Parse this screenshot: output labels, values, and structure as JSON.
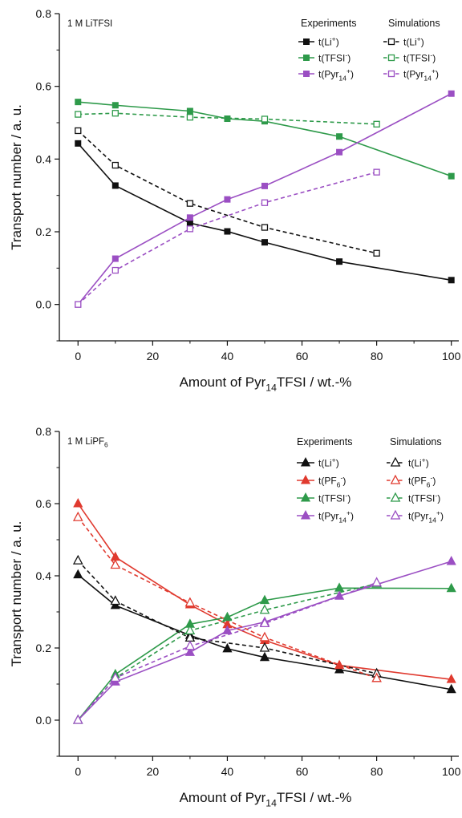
{
  "chart_data": [
    {
      "type": "line",
      "panel_label": "1 M LiTFSI",
      "xlabel": "Amount of Pyr14TFSI / wt.-%",
      "ylabel": "Transport number / a. u.",
      "xlim": [
        -5,
        102
      ],
      "ylim": [
        -0.1,
        0.8
      ],
      "xticks": [
        0,
        20,
        40,
        60,
        80,
        100
      ],
      "yticks": [
        0.0,
        0.2,
        0.4,
        0.6,
        0.8
      ],
      "xtick_labels": [
        "0",
        "20",
        "40",
        "60",
        "80",
        "100"
      ],
      "ytick_labels": [
        "0.0",
        "0.2",
        "0.4",
        "0.6",
        "0.8"
      ],
      "legend_headers": [
        "Experiments",
        "Simulations"
      ],
      "legend_placement": "top-right",
      "series": [
        {
          "name": "t(Li+)",
          "group": "Experiments",
          "color": "#111111",
          "marker": "square-filled",
          "dashed": false,
          "x": [
            0,
            10,
            30,
            40,
            50,
            70,
            100
          ],
          "y": [
            0.443,
            0.327,
            0.224,
            0.201,
            0.171,
            0.118,
            0.067
          ]
        },
        {
          "name": "t(TFSI-)",
          "group": "Experiments",
          "color": "#2e9a4a",
          "marker": "square-filled",
          "dashed": false,
          "x": [
            0,
            10,
            30,
            40,
            50,
            70,
            100
          ],
          "y": [
            0.557,
            0.548,
            0.532,
            0.511,
            0.504,
            0.462,
            0.353
          ]
        },
        {
          "name": "t(Pyr14+)",
          "group": "Experiments",
          "color": "#9b4fc3",
          "marker": "square-filled",
          "dashed": false,
          "x": [
            0,
            10,
            30,
            40,
            50,
            70,
            100
          ],
          "y": [
            0.0,
            0.126,
            0.239,
            0.289,
            0.326,
            0.419,
            0.58
          ]
        },
        {
          "name": "t(Li+)",
          "group": "Simulations",
          "color": "#111111",
          "marker": "square-open",
          "dashed": true,
          "x": [
            0,
            10,
            30,
            50,
            80
          ],
          "y": [
            0.478,
            0.383,
            0.278,
            0.212,
            0.141
          ]
        },
        {
          "name": "t(TFSI-)",
          "group": "Simulations",
          "color": "#2e9a4a",
          "marker": "square-open",
          "dashed": true,
          "x": [
            0,
            10,
            30,
            50,
            80
          ],
          "y": [
            0.523,
            0.526,
            0.515,
            0.51,
            0.496
          ]
        },
        {
          "name": "t(Pyr14+)",
          "group": "Simulations",
          "color": "#9b4fc3",
          "marker": "square-open",
          "dashed": true,
          "x": [
            0,
            10,
            30,
            50,
            80
          ],
          "y": [
            0.0,
            0.094,
            0.208,
            0.28,
            0.364
          ]
        }
      ]
    },
    {
      "type": "line",
      "panel_label": "1 M LiPF6",
      "xlabel": "Amount of Pyr14TFSI / wt.-%",
      "ylabel": "Transport number / a. u.",
      "xlim": [
        -5,
        102
      ],
      "ylim": [
        -0.1,
        0.8
      ],
      "xticks": [
        0,
        20,
        40,
        60,
        80,
        100
      ],
      "yticks": [
        0.0,
        0.2,
        0.4,
        0.6,
        0.8
      ],
      "xtick_labels": [
        "0",
        "20",
        "40",
        "60",
        "80",
        "100"
      ],
      "ytick_labels": [
        "0.0",
        "0.2",
        "0.4",
        "0.6",
        "0.8"
      ],
      "legend_headers": [
        "Experiments",
        "Simulations"
      ],
      "legend_placement": "top-right",
      "series": [
        {
          "name": "t(Li+)",
          "group": "Experiments",
          "color": "#111111",
          "marker": "triangle-filled",
          "dashed": false,
          "x": [
            0,
            10,
            30,
            40,
            50,
            70,
            100
          ],
          "y": [
            0.403,
            0.318,
            0.235,
            0.198,
            0.174,
            0.14,
            0.085
          ]
        },
        {
          "name": "t(PF6-)",
          "group": "Experiments",
          "color": "#e03a2f",
          "marker": "triangle-filled",
          "dashed": false,
          "x": [
            0,
            10,
            30,
            40,
            50,
            70,
            100
          ],
          "y": [
            0.6,
            0.452,
            0.32,
            0.265,
            0.221,
            0.152,
            0.113
          ]
        },
        {
          "name": "t(TFSI-)",
          "group": "Experiments",
          "color": "#2e9a4a",
          "marker": "triangle-filled",
          "dashed": false,
          "x": [
            0,
            10,
            30,
            40,
            50,
            70,
            100
          ],
          "y": [
            0.0,
            0.127,
            0.266,
            0.285,
            0.332,
            0.366,
            0.365
          ]
        },
        {
          "name": "t(Pyr14+)",
          "group": "Experiments",
          "color": "#9b4fc3",
          "marker": "triangle-filled",
          "dashed": false,
          "x": [
            0,
            10,
            30,
            40,
            50,
            70,
            100
          ],
          "y": [
            0.0,
            0.106,
            0.188,
            0.248,
            0.272,
            0.344,
            0.44
          ]
        },
        {
          "name": "t(Li+)",
          "group": "Simulations",
          "color": "#111111",
          "marker": "triangle-open",
          "dashed": true,
          "x": [
            0,
            10,
            30,
            50,
            80
          ],
          "y": [
            0.442,
            0.33,
            0.228,
            0.2,
            0.129
          ]
        },
        {
          "name": "t(PF6-)",
          "group": "Simulations",
          "color": "#e03a2f",
          "marker": "triangle-open",
          "dashed": true,
          "x": [
            0,
            10,
            30,
            50,
            80
          ],
          "y": [
            0.562,
            0.43,
            0.325,
            0.229,
            0.116
          ]
        },
        {
          "name": "t(TFSI-)",
          "group": "Simulations",
          "color": "#2e9a4a",
          "marker": "triangle-open",
          "dashed": true,
          "x": [
            0,
            10,
            30,
            50,
            80
          ],
          "y": [
            0.0,
            0.117,
            0.248,
            0.305,
            0.378
          ]
        },
        {
          "name": "t(Pyr14+)",
          "group": "Simulations",
          "color": "#9b4fc3",
          "marker": "triangle-open",
          "dashed": true,
          "x": [
            0,
            10,
            30,
            50,
            80
          ],
          "y": [
            0.0,
            0.117,
            0.205,
            0.268,
            0.381
          ]
        }
      ]
    }
  ]
}
